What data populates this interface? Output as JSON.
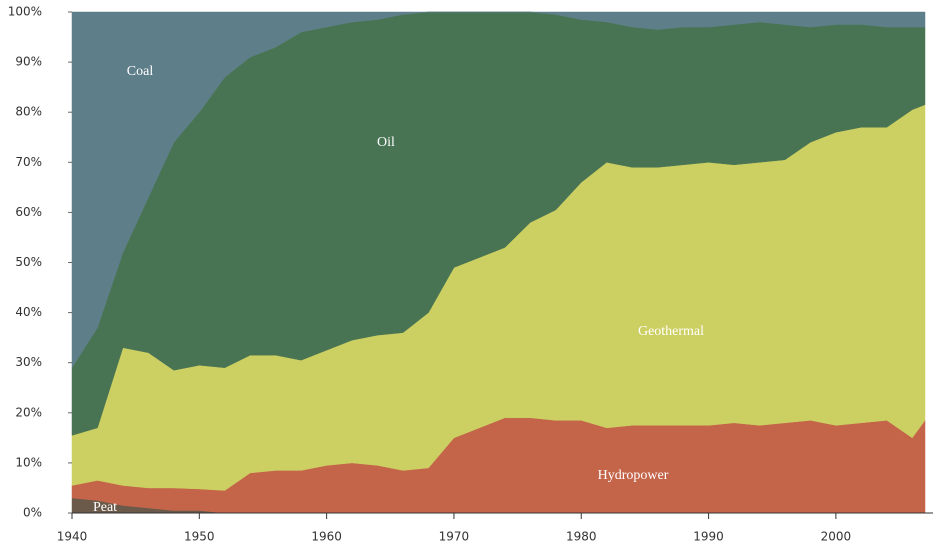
{
  "chart_data": {
    "type": "stacked_area",
    "x": [
      1940,
      1942,
      1944,
      1946,
      1948,
      1950,
      1952,
      1954,
      1956,
      1958,
      1960,
      1962,
      1964,
      1966,
      1968,
      1970,
      1972,
      1974,
      1976,
      1978,
      1980,
      1982,
      1984,
      1986,
      1988,
      1990,
      1992,
      1994,
      1996,
      1998,
      2000,
      2002,
      2004,
      2006,
      2007
    ],
    "series": [
      {
        "name": "Peat",
        "color": "#6b5a4a",
        "values": [
          3,
          2.5,
          1.5,
          1,
          0.5,
          0.5,
          0,
          0,
          0,
          0,
          0,
          0,
          0,
          0,
          0,
          0,
          0,
          0,
          0,
          0,
          0,
          0,
          0,
          0,
          0,
          0,
          0,
          0,
          0,
          0,
          0,
          0,
          0,
          0,
          0
        ]
      },
      {
        "name": "Hydropower",
        "color": "#c4654a",
        "values": [
          2.5,
          4,
          4,
          4,
          4.5,
          4.3,
          4.5,
          8,
          8.5,
          8.5,
          9.5,
          10,
          9.5,
          8.5,
          9,
          15,
          17,
          19,
          19,
          18.5,
          18.5,
          17,
          17.5,
          17.5,
          17.5,
          17.5,
          18,
          17.5,
          18,
          18.5,
          17.5,
          18,
          18.5,
          15,
          18.5
        ]
      },
      {
        "name": "Geothermal",
        "color": "#cccf62",
        "values": [
          10,
          10.5,
          27.5,
          27,
          23.5,
          24.7,
          24.5,
          23.5,
          23,
          22,
          23,
          24.5,
          26,
          27.5,
          31,
          34,
          34,
          34,
          39,
          42,
          47.5,
          53,
          51.5,
          51.5,
          52,
          52.5,
          51.5,
          52.5,
          52.5,
          55.5,
          58.5,
          59,
          58.5,
          65.5,
          63
        ]
      },
      {
        "name": "Oil",
        "color": "#487453",
        "values": [
          13.5,
          20,
          19,
          31,
          45.5,
          50.5,
          58,
          59.5,
          61.5,
          65.5,
          64.5,
          63.5,
          63,
          63.5,
          60,
          51,
          49,
          47,
          42,
          39,
          32.5,
          28,
          28,
          27.5,
          27.5,
          27,
          28,
          28,
          27,
          23,
          21.5,
          20.5,
          20,
          16.5,
          15.5
        ]
      },
      {
        "name": "Coal",
        "color": "#5e7f8a",
        "values": [
          71,
          63,
          48,
          37,
          26,
          20,
          13,
          9,
          7,
          4,
          3,
          2,
          1.5,
          0.5,
          0,
          0,
          0,
          0,
          0,
          0.5,
          1.5,
          2,
          3,
          3.5,
          3,
          3,
          2.5,
          2,
          2.5,
          3,
          2.5,
          2.5,
          3,
          3,
          3
        ]
      }
    ],
    "xlim": [
      1940,
      2007
    ],
    "xticks": [
      1940,
      1950,
      1960,
      1970,
      1980,
      1990,
      2000
    ],
    "ylim": [
      0,
      100
    ],
    "yticks": [
      {
        "value": 0,
        "label": "0%"
      },
      {
        "value": 10,
        "label": "10%"
      },
      {
        "value": 20,
        "label": "20%"
      },
      {
        "value": 30,
        "label": "30%"
      },
      {
        "value": 40,
        "label": "40%"
      },
      {
        "value": 50,
        "label": "50%"
      },
      {
        "value": 60,
        "label": "60%"
      },
      {
        "value": 70,
        "label": "70%"
      },
      {
        "value": 80,
        "label": "80%"
      },
      {
        "value": 90,
        "label": "90%"
      },
      {
        "value": 100,
        "label": "100%"
      }
    ]
  }
}
